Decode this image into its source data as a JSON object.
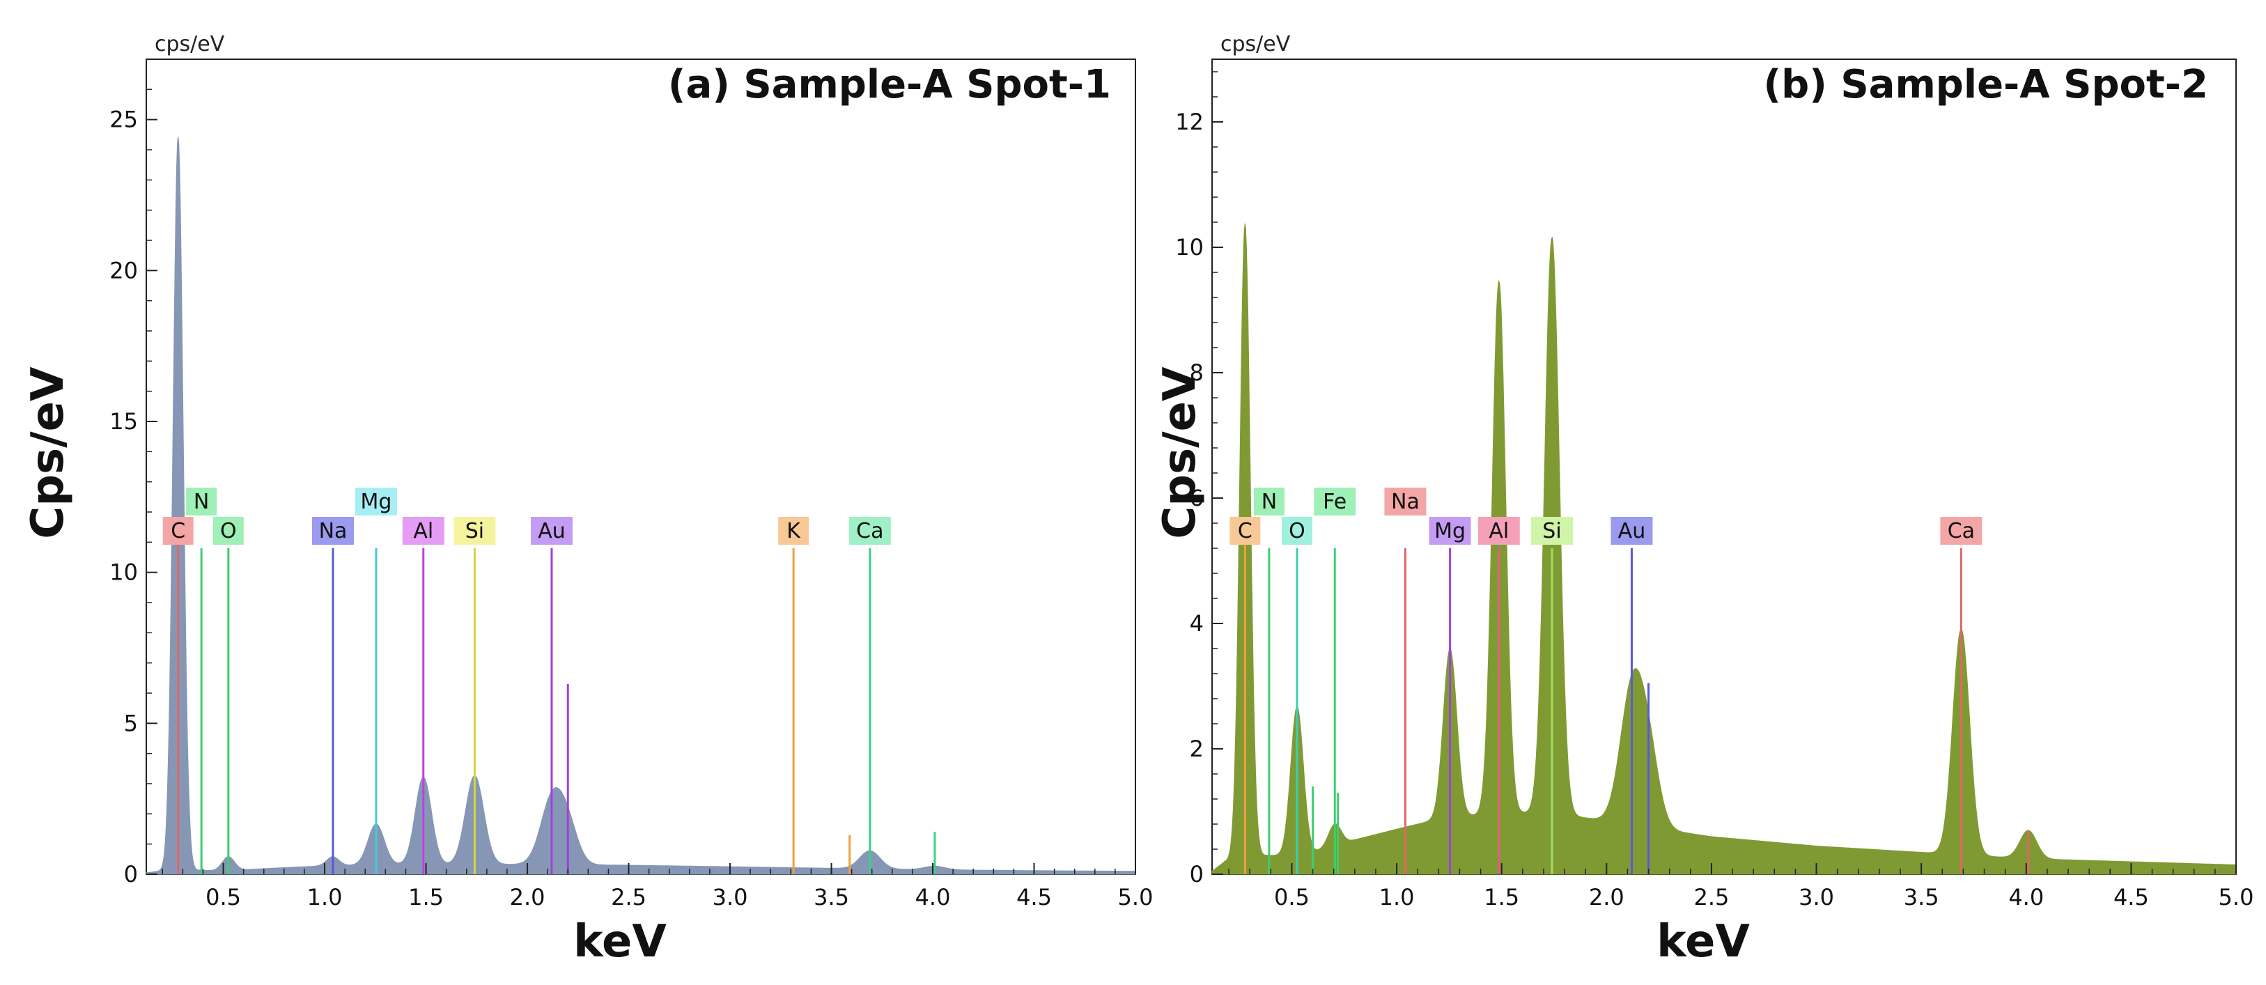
{
  "chart_data": [
    {
      "type": "area",
      "title": "(a) Sample-A Spot-1",
      "xlabel": "keV",
      "ylabel": "Cps/eV",
      "unit_label": "cps/eV",
      "xlim": [
        0.12,
        5.0
      ],
      "ylim": [
        0,
        27
      ],
      "xticks": [
        0.5,
        1.0,
        1.5,
        2.0,
        2.5,
        3.0,
        3.5,
        4.0,
        4.5,
        5.0
      ],
      "xtick_labels": [
        "0.5",
        "1.0",
        "1.5",
        "2.0",
        "2.5",
        "3.0",
        "3.5",
        "4.0",
        "4.5",
        "5.0"
      ],
      "yticks": [
        0,
        5,
        10,
        15,
        20,
        25
      ],
      "ytick_labels": [
        "0",
        "5",
        "10",
        "15",
        "20",
        "25"
      ],
      "fill_color": "#8597b4",
      "baseline": [
        [
          0.12,
          0.05
        ],
        [
          0.18,
          0.1
        ],
        [
          0.3,
          0.15
        ],
        [
          0.45,
          0.12
        ],
        [
          0.6,
          0.15
        ],
        [
          0.8,
          0.22
        ],
        [
          1.0,
          0.28
        ],
        [
          1.3,
          0.32
        ],
        [
          1.6,
          0.32
        ],
        [
          2.0,
          0.33
        ],
        [
          2.5,
          0.3
        ],
        [
          3.0,
          0.25
        ],
        [
          3.5,
          0.2
        ],
        [
          4.0,
          0.15
        ],
        [
          4.5,
          0.12
        ],
        [
          5.0,
          0.1
        ]
      ],
      "peaks": [
        {
          "x": 0.277,
          "height": 24.3,
          "width": 0.025
        },
        {
          "x": 0.525,
          "height": 0.45,
          "width": 0.03
        },
        {
          "x": 1.04,
          "height": 0.3,
          "width": 0.03
        },
        {
          "x": 1.254,
          "height": 1.35,
          "width": 0.04
        },
        {
          "x": 1.487,
          "height": 2.9,
          "width": 0.04
        },
        {
          "x": 1.74,
          "height": 2.95,
          "width": 0.045
        },
        {
          "x": 2.12,
          "height": 2.1,
          "width": 0.055
        },
        {
          "x": 2.2,
          "height": 1.2,
          "width": 0.05
        },
        {
          "x": 3.69,
          "height": 0.6,
          "width": 0.05
        },
        {
          "x": 4.01,
          "height": 0.12,
          "width": 0.05
        }
      ],
      "element_markers": [
        {
          "symbol": "C",
          "energy": 0.277,
          "line_height": 11.2,
          "color": "#e06666",
          "label_bg": "#f4a6a6",
          "row": 1
        },
        {
          "symbol": "N",
          "energy": 0.392,
          "line_height": 10.8,
          "color": "#3ccf6e",
          "label_bg": "#9ff0b6",
          "row": 0
        },
        {
          "symbol": "O",
          "energy": 0.525,
          "line_height": 10.8,
          "color": "#3ccf6e",
          "label_bg": "#9ff0b6",
          "row": 1
        },
        {
          "symbol": "Na",
          "energy": 1.041,
          "line_height": 10.8,
          "color": "#5a5ad6",
          "label_bg": "#9a9aee",
          "row": 1
        },
        {
          "symbol": "Mg",
          "energy": 1.254,
          "line_height": 10.8,
          "color": "#46c8d6",
          "label_bg": "#a6eef4",
          "row": 0
        },
        {
          "symbol": "Al",
          "energy": 1.487,
          "line_height": 10.8,
          "color": "#c040e0",
          "label_bg": "#e49cf4",
          "row": 1
        },
        {
          "symbol": "Si",
          "energy": 1.74,
          "line_height": 10.8,
          "color": "#d6d640",
          "label_bg": "#f4f49c",
          "row": 1
        },
        {
          "symbol": "Au",
          "energy": 2.12,
          "line_height": 10.8,
          "color": "#a040e0",
          "label_bg": "#c59cf4",
          "row": 1
        },
        {
          "symbol": "K",
          "energy": 3.313,
          "line_height": 10.8,
          "color": "#f0a040",
          "label_bg": "#f8c896",
          "row": 1
        },
        {
          "symbol": "Ca",
          "energy": 3.69,
          "line_height": 10.8,
          "color": "#3ccf8e",
          "label_bg": "#9ff0c6",
          "row": 1
        }
      ],
      "extra_lines": [
        {
          "energy": 2.2,
          "height": 6.3,
          "color": "#a040e0"
        },
        {
          "energy": 3.59,
          "height": 1.3,
          "color": "#f0a040"
        },
        {
          "energy": 4.01,
          "height": 1.4,
          "color": "#3ccf8e"
        }
      ]
    },
    {
      "type": "area",
      "title": "(b) Sample-A Spot-2",
      "xlabel": "keV",
      "ylabel": "Cps/eV",
      "unit_label": "cps/eV",
      "xlim": [
        0.12,
        5.0
      ],
      "ylim": [
        0,
        13
      ],
      "xticks": [
        0.5,
        1.0,
        1.5,
        2.0,
        2.5,
        3.0,
        3.5,
        4.0,
        4.5,
        5.0
      ],
      "xtick_labels": [
        "0.5",
        "1.0",
        "1.5",
        "2.0",
        "2.5",
        "3.0",
        "3.5",
        "4.0",
        "4.5",
        "5.0"
      ],
      "yticks": [
        0,
        2,
        4,
        6,
        8,
        10,
        12
      ],
      "ytick_labels": [
        "0",
        "2",
        "4",
        "6",
        "8",
        "10",
        "12"
      ],
      "fill_color": "#7f9a33",
      "baseline": [
        [
          0.12,
          0.05
        ],
        [
          0.18,
          0.2
        ],
        [
          0.3,
          0.3
        ],
        [
          0.45,
          0.3
        ],
        [
          0.6,
          0.35
        ],
        [
          0.8,
          0.55
        ],
        [
          1.0,
          0.72
        ],
        [
          1.2,
          0.88
        ],
        [
          1.4,
          0.95
        ],
        [
          1.6,
          0.98
        ],
        [
          1.8,
          0.95
        ],
        [
          2.0,
          0.85
        ],
        [
          2.5,
          0.6
        ],
        [
          3.0,
          0.45
        ],
        [
          3.5,
          0.35
        ],
        [
          4.0,
          0.25
        ],
        [
          4.5,
          0.2
        ],
        [
          5.0,
          0.15
        ]
      ],
      "peaks": [
        {
          "x": 0.277,
          "height": 10.1,
          "width": 0.025
        },
        {
          "x": 0.525,
          "height": 2.35,
          "width": 0.03
        },
        {
          "x": 0.705,
          "height": 0.35,
          "width": 0.03
        },
        {
          "x": 1.254,
          "height": 2.7,
          "width": 0.032
        },
        {
          "x": 1.487,
          "height": 8.5,
          "width": 0.032
        },
        {
          "x": 1.74,
          "height": 9.2,
          "width": 0.035
        },
        {
          "x": 2.12,
          "height": 2.1,
          "width": 0.055
        },
        {
          "x": 2.2,
          "height": 1.1,
          "width": 0.05
        },
        {
          "x": 3.69,
          "height": 3.6,
          "width": 0.04
        },
        {
          "x": 4.01,
          "height": 0.45,
          "width": 0.04
        }
      ],
      "element_markers": [
        {
          "symbol": "C",
          "energy": 0.277,
          "line_height": 5.5,
          "color": "#f0a040",
          "label_bg": "#f8c896",
          "row": 1
        },
        {
          "symbol": "N",
          "energy": 0.392,
          "line_height": 5.2,
          "color": "#3ccf6e",
          "label_bg": "#9ff0b6",
          "row": 0
        },
        {
          "symbol": "O",
          "energy": 0.525,
          "line_height": 5.2,
          "color": "#3ccfb0",
          "label_bg": "#9ff0de",
          "row": 1
        },
        {
          "symbol": "Fe",
          "energy": 0.705,
          "line_height": 5.2,
          "color": "#3ccf6e",
          "label_bg": "#9ff0b6",
          "row": 0
        },
        {
          "symbol": "Na",
          "energy": 1.041,
          "line_height": 5.2,
          "color": "#e06666",
          "label_bg": "#f4a6a6",
          "row": 0
        },
        {
          "symbol": "Mg",
          "energy": 1.254,
          "line_height": 5.2,
          "color": "#a040e0",
          "label_bg": "#c59cf4",
          "row": 1
        },
        {
          "symbol": "Al",
          "energy": 1.487,
          "line_height": 5.2,
          "color": "#e06080",
          "label_bg": "#f4a0b8",
          "row": 1
        },
        {
          "symbol": "Si",
          "energy": 1.74,
          "line_height": 5.2,
          "color": "#a0e060",
          "label_bg": "#d0f4a8",
          "row": 1
        },
        {
          "symbol": "Au",
          "energy": 2.12,
          "line_height": 5.2,
          "color": "#5a5ad6",
          "label_bg": "#9a9aee",
          "row": 1
        },
        {
          "symbol": "Ca",
          "energy": 3.69,
          "line_height": 5.2,
          "color": "#e06666",
          "label_bg": "#f4a6a6",
          "row": 1
        }
      ],
      "extra_lines": [
        {
          "energy": 2.2,
          "height": 3.05,
          "color": "#5a5ad6"
        },
        {
          "energy": 0.6,
          "height": 1.4,
          "color": "#3ccf6e"
        },
        {
          "energy": 0.72,
          "height": 1.3,
          "color": "#3ccf6e"
        },
        {
          "energy": 4.01,
          "height": 0.7,
          "color": "#e06666"
        }
      ]
    }
  ]
}
